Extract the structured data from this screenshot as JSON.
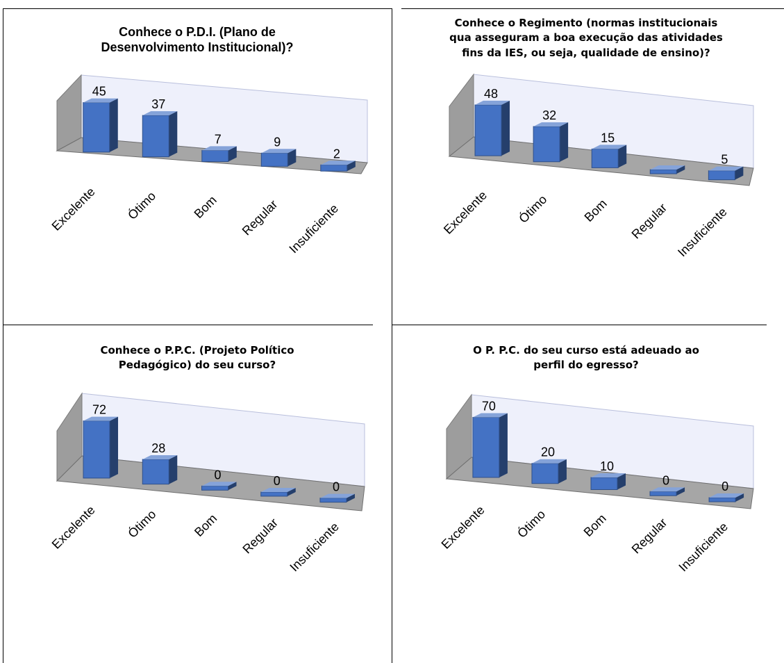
{
  "chart_data": [
    {
      "type": "bar",
      "title": "Conhece o P.D.I. (Plano de Desenvolvimento Institucional)?",
      "title_lines": [
        "Conhece o P.D.I. (Plano de",
        "Desenvolvimento Institucional)?"
      ],
      "categories": [
        "Excelente",
        "Ótimo",
        "Bom",
        "Regular",
        "Insuficiente"
      ],
      "values": [
        45,
        37,
        7,
        9,
        2
      ],
      "bar_color": "#4472C4",
      "style": "3d"
    },
    {
      "type": "bar",
      "title": "Conhece o Regimento (normas institucionais qua asseguram a boa execução das atividades fins da IES, ou seja, qualidade de ensino)?",
      "title_lines": [
        "Conhece o Regimento (normas institucionais",
        "qua asseguram a boa execução das atividades",
        "fins da IES, ou seja, qualidade de ensino)?"
      ],
      "categories": [
        "Excelente",
        "Ótimo",
        "Bom",
        "Regular",
        "Insuficiente"
      ],
      "values": [
        48,
        32,
        15,
        0,
        5
      ],
      "labels": [
        "48",
        "32",
        "15",
        "",
        "5"
      ],
      "bar_color": "#4472C4",
      "style": "3d"
    },
    {
      "type": "bar",
      "title": "Conhece o P.P.C. (Projeto Político Pedagógico) do seu curso?",
      "title_lines": [
        "Conhece o P.P.C. (Projeto Político",
        "Pedagógico) do seu curso?"
      ],
      "categories": [
        "Excelente",
        "Ótimo",
        "Bom",
        "Regular",
        "Insuficiente"
      ],
      "values": [
        72,
        28,
        0,
        0,
        0
      ],
      "bar_color": "#4472C4",
      "style": "3d"
    },
    {
      "type": "bar",
      "title": "O P. P.C. do seu curso está adeuado ao perfil do egresso?",
      "title_lines": [
        "O P. P.C. do seu curso está adeuado ao",
        "perfil do egresso?"
      ],
      "categories": [
        "Excelente",
        "Ótimo",
        "Bom",
        "Regular",
        "Insuficiente"
      ],
      "values": [
        70,
        20,
        10,
        0,
        0
      ],
      "bar_color": "#4472C4",
      "style": "3d"
    }
  ]
}
